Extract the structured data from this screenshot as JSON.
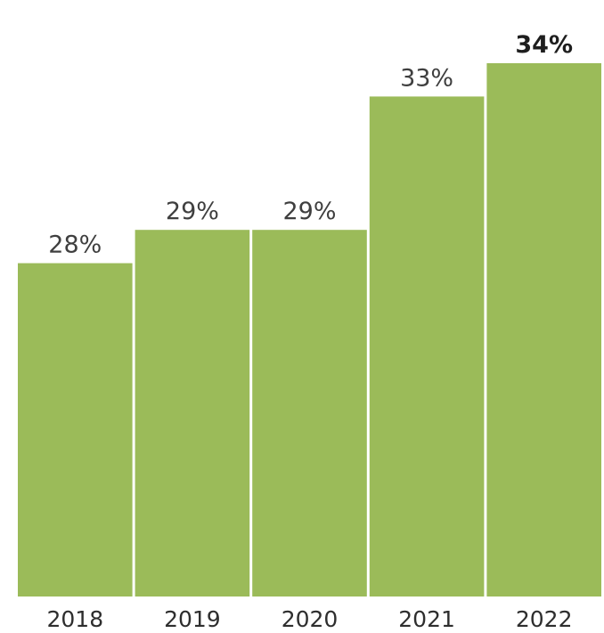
{
  "chart_data": {
    "type": "bar",
    "categories": [
      "2018",
      "2019",
      "2020",
      "2021",
      "2022"
    ],
    "values": [
      28,
      29,
      29,
      33,
      34
    ],
    "value_labels": [
      "28%",
      "29%",
      "29%",
      "33%",
      "34%"
    ],
    "highlight_index": 4,
    "bar_color": "#9bbb59",
    "title": "",
    "xlabel": "",
    "ylabel": "",
    "ylim": [
      0,
      34
    ],
    "grid": false,
    "legend": "none"
  }
}
